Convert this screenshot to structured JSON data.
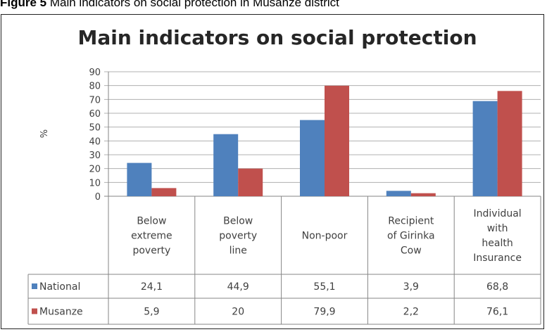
{
  "caption": {
    "prefix": "Figure 5",
    "text": "Main indicators on social protection in Musanze district"
  },
  "chart_data": {
    "type": "bar",
    "title": "Main indicators on social protection",
    "ylabel": "%",
    "ylim": [
      0,
      90
    ],
    "yticks": [
      0,
      10,
      20,
      30,
      40,
      50,
      60,
      70,
      80,
      90
    ],
    "grid": true,
    "legend": "data-table",
    "categories": [
      [
        "Below",
        "extreme",
        "poverty"
      ],
      [
        "Below",
        "poverty",
        "line"
      ],
      [
        "Non-poor"
      ],
      [
        "Recipient",
        "of Girinka",
        "Cow"
      ],
      [
        "Individual",
        "with",
        "health",
        "Insurance"
      ]
    ],
    "series": [
      {
        "name": "National",
        "color": "#4f81bd",
        "values": [
          24.1,
          44.9,
          55.1,
          3.9,
          68.8
        ],
        "labels": [
          "24,1",
          "44,9",
          "55,1",
          "3,9",
          "68,8"
        ]
      },
      {
        "name": "Musanze",
        "color": "#c0504d",
        "values": [
          5.9,
          20,
          79.9,
          2.2,
          76.1
        ],
        "labels": [
          "5,9",
          "20",
          "79,9",
          "2,2",
          "76,1"
        ]
      }
    ]
  }
}
